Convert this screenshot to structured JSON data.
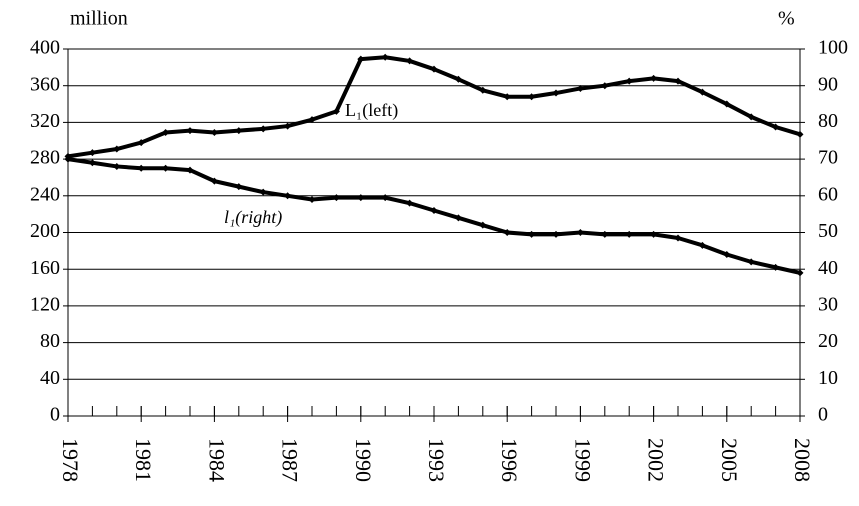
{
  "chart_data": {
    "type": "line",
    "ylabel": "million",
    "y2label": "%",
    "x": [
      1978,
      1979,
      1980,
      1981,
      1982,
      1983,
      1984,
      1985,
      1986,
      1987,
      1988,
      1989,
      1990,
      1991,
      1992,
      1993,
      1994,
      1995,
      1996,
      1997,
      1998,
      1999,
      2000,
      2001,
      2002,
      2003,
      2004,
      2005,
      2006,
      2007,
      2008
    ],
    "xlim": [
      1978,
      2008
    ],
    "xticks": [
      1978,
      1981,
      1984,
      1987,
      1990,
      1993,
      1996,
      1999,
      2002,
      2005,
      2008
    ],
    "ylim": [
      0,
      400
    ],
    "yticks": [
      0,
      40,
      80,
      120,
      160,
      200,
      240,
      280,
      320,
      360,
      400
    ],
    "y2lim": [
      0,
      100
    ],
    "y2ticks": [
      0,
      10,
      20,
      30,
      40,
      50,
      60,
      70,
      80,
      90,
      100
    ],
    "grid": true,
    "series": [
      {
        "name": "L₁(left)",
        "color": "#000000",
        "axis": "y",
        "values": [
          283,
          287,
          291,
          298,
          309,
          311,
          309,
          311,
          313,
          316,
          323,
          332,
          389,
          391,
          387,
          378,
          367,
          355,
          348,
          348,
          352,
          357,
          360,
          365,
          368,
          365,
          353,
          340,
          326,
          315,
          307
        ]
      },
      {
        "name": "l₁(right)",
        "color": "#000000",
        "axis": "y2",
        "values": [
          70,
          69,
          68,
          67.5,
          67.5,
          67,
          64,
          62.5,
          61,
          60,
          59,
          59.5,
          59.5,
          59.5,
          58,
          56,
          54,
          52,
          50,
          49.5,
          49.5,
          50,
          49.5,
          49.5,
          49.5,
          48.5,
          46.5,
          44,
          42,
          40.5,
          39
        ]
      }
    ]
  }
}
